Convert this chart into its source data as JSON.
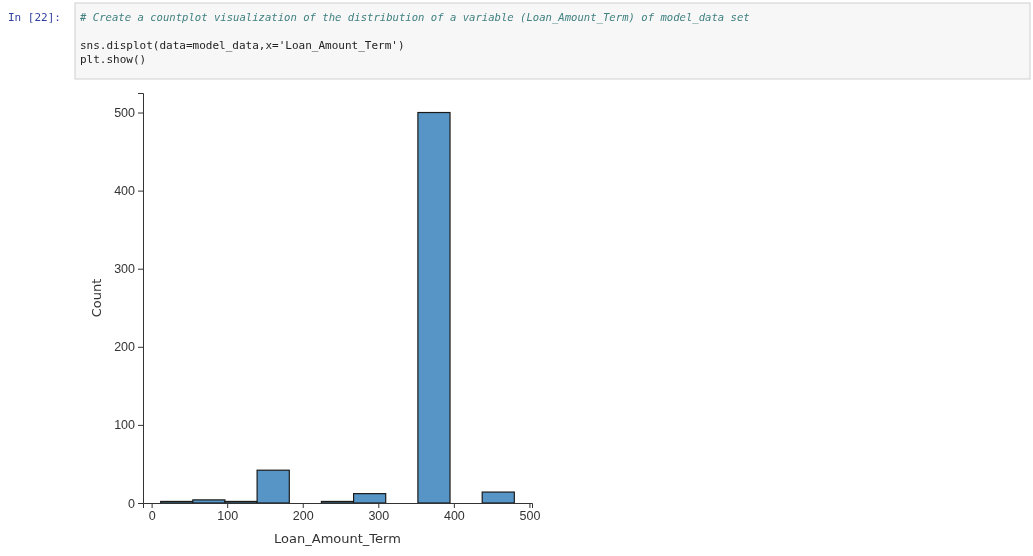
{
  "chart_data": {
    "type": "histogram",
    "xlabel": "Loan_Amount_Term",
    "ylabel": "Count",
    "bins": [
      12,
      54.5,
      97,
      139.6,
      182.2,
      224.7,
      267.3,
      309.8,
      352.4,
      394.9,
      437.5,
      480
    ],
    "values": [
      2,
      4,
      2,
      42,
      0,
      2,
      12,
      0,
      500,
      0,
      14
    ],
    "color": "#5795c6",
    "xlim": [
      -11.4,
      503.4
    ],
    "xticks": [
      0,
      100,
      200,
      300,
      400,
      500
    ],
    "ylim": [
      0,
      525
    ],
    "yticks": [
      0,
      100,
      200,
      300,
      400,
      500
    ],
    "grid": false,
    "annotations": [
      "In [22]:",
      "# Create a countplot visualization of the distribution of a variable (Loan_Amount_Term) of model_data set",
      "sns.displot(data=model_data,x='Loan_Amount_Term')",
      "plt.show()"
    ]
  }
}
